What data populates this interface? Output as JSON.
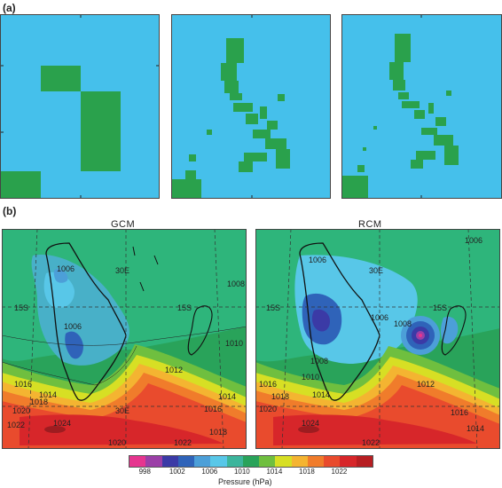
{
  "panel_a": {
    "label": "(a)"
  },
  "panel_b": {
    "label": "(b)",
    "maps": [
      {
        "title": "GCM"
      },
      {
        "title": "RCM"
      }
    ]
  },
  "colorbar": {
    "title": "Pressure (hPa)",
    "tick_labels": [
      "998",
      "1002",
      "1006",
      "1010",
      "1014",
      "1018",
      "1022"
    ],
    "colors": [
      "#e6358f",
      "#9b3fa7",
      "#3b3aa6",
      "#2f63b9",
      "#4c9fd8",
      "#58c7e8",
      "#3cb59c",
      "#29a35a",
      "#6fbf3f",
      "#d7df24",
      "#f4b431",
      "#f07c2b",
      "#e94b2d",
      "#d7262a",
      "#b71e22"
    ]
  },
  "map_labels": {
    "gcm": [
      "1006",
      "1006",
      "15S",
      "15S",
      "30E",
      "30E",
      "1010",
      "1008",
      "1012",
      "1014",
      "1016",
      "1018",
      "1020",
      "1022",
      "1022",
      "1020",
      "1016",
      "1018",
      "1014",
      "1024"
    ],
    "rcm": [
      "1006",
      "1006",
      "15S",
      "15S",
      "30E",
      "1008",
      "1010",
      "1012",
      "1014",
      "1016",
      "1018",
      "1020",
      "1022",
      "1024",
      "1016",
      "1014",
      "1008",
      "1006"
    ]
  }
}
